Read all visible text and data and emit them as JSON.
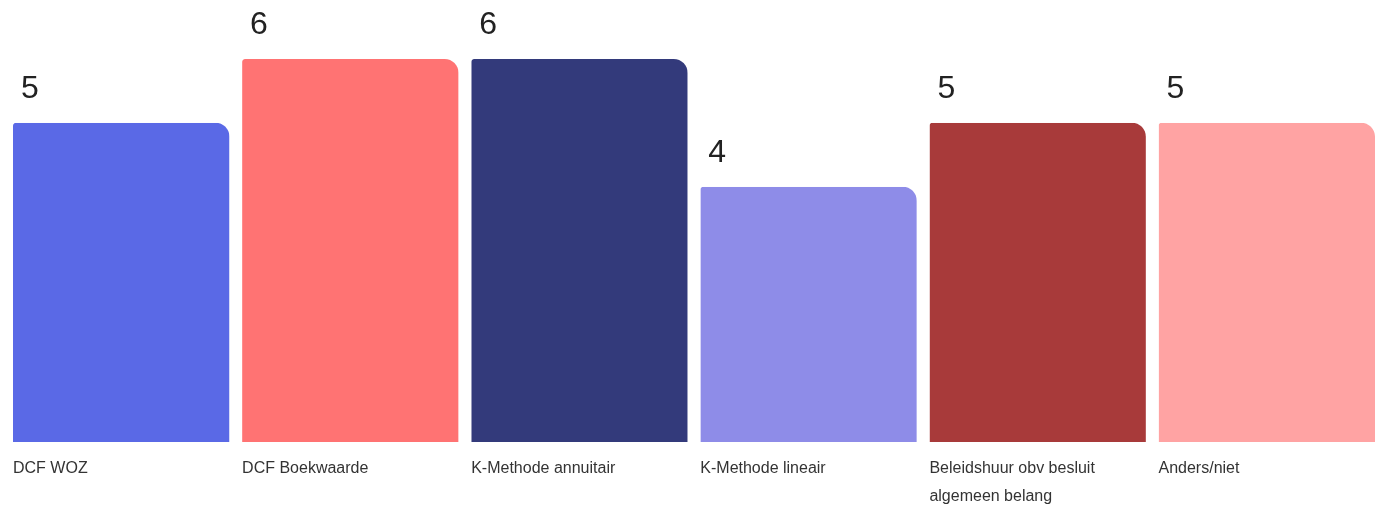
{
  "chart_data": {
    "type": "bar",
    "categories": [
      "DCF WOZ",
      "DCF Boekwaarde",
      "K-Methode annuitair",
      "K-Methode lineair",
      "Beleidshuur obv besluit algemeen belang",
      "Anders/niet"
    ],
    "values": [
      5,
      6,
      6,
      4,
      5,
      5
    ],
    "colors": [
      "#5a69e6",
      "#ff7373",
      "#333a7b",
      "#8e8ce8",
      "#a83a3a",
      "#ffa3a3"
    ],
    "data_labels": true
  }
}
